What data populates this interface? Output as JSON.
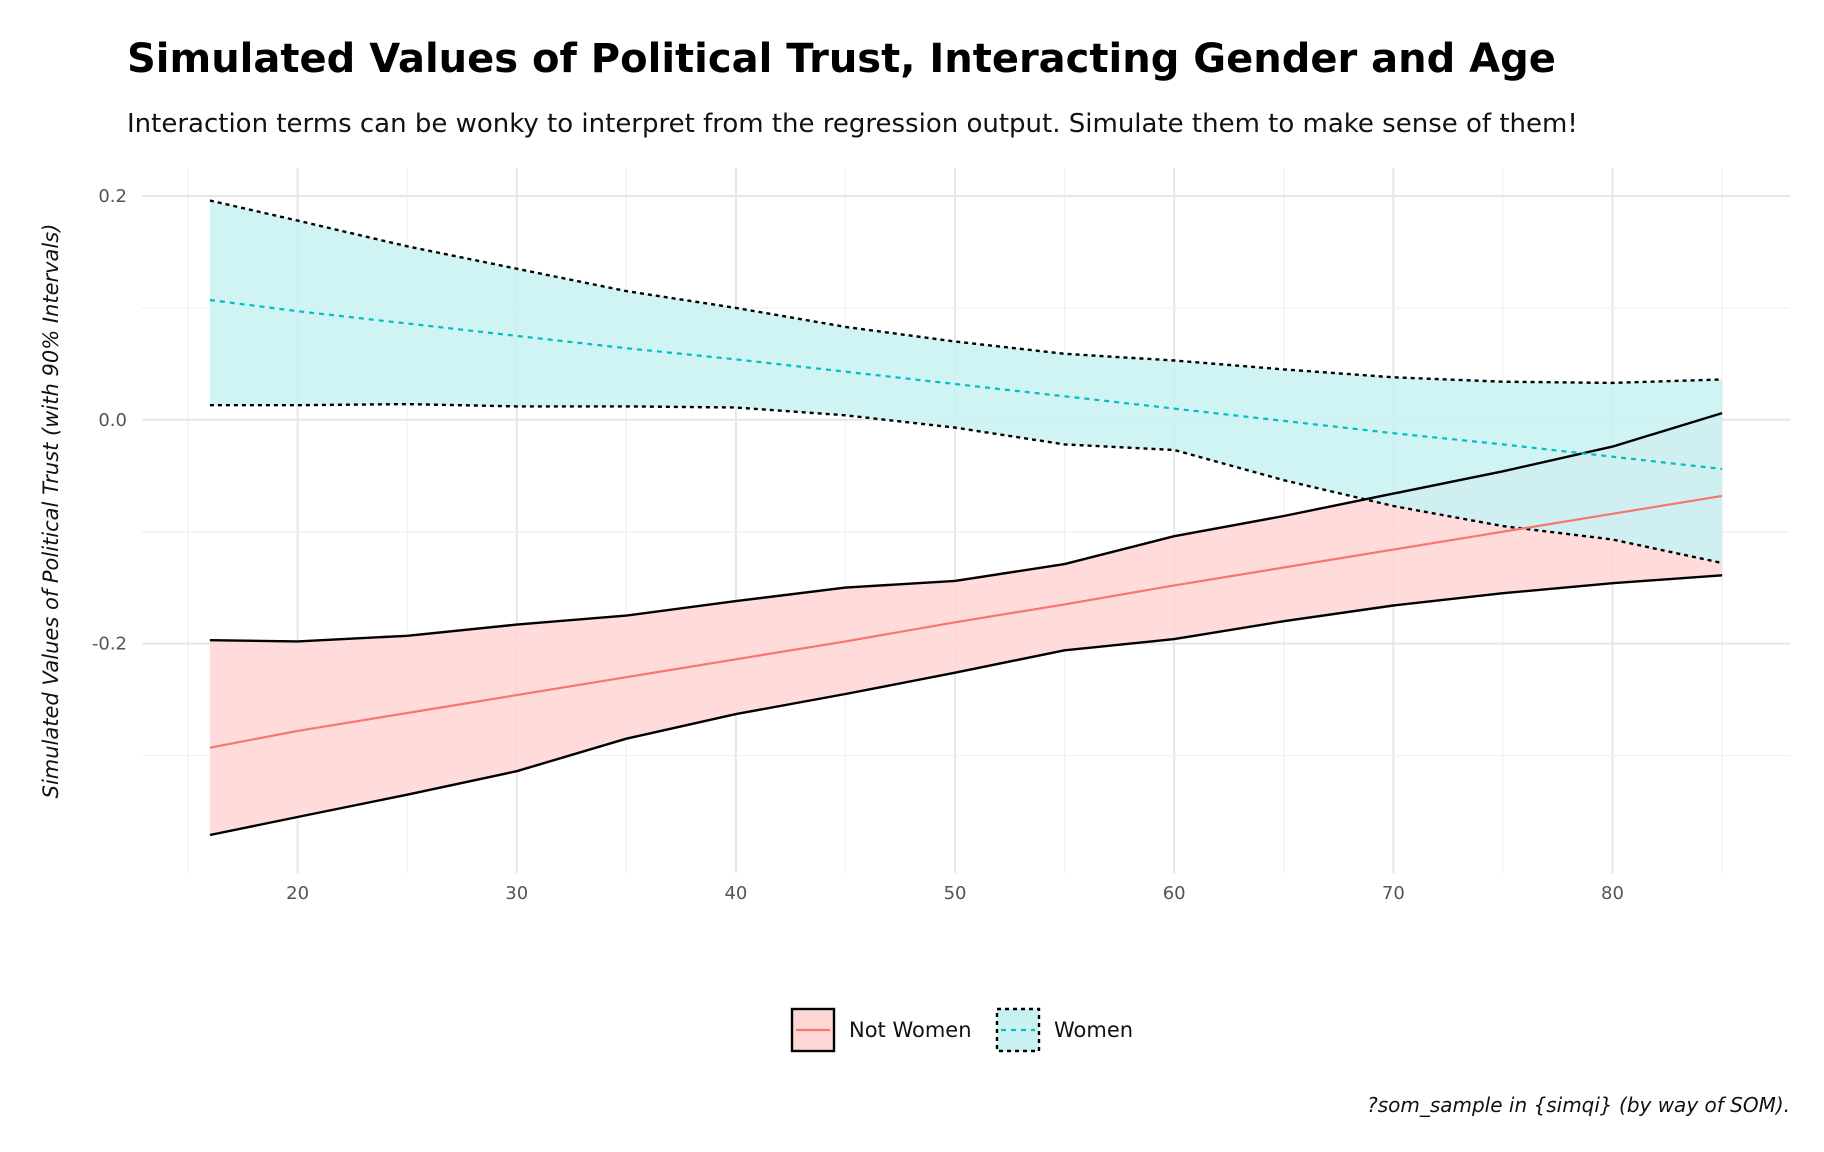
{
  "chart_data": {
    "type": "area",
    "title": "Simulated Values of Political Trust, Interacting Gender and Age",
    "subtitle": "Interaction terms can be wonky to interpret from the regression output. Simulate them to make sense of them!",
    "ylabel": "Simulated Values of Political Trust (with 90% Intervals)",
    "xlabel": "",
    "caption": "?som_sample in {simqi} (by way of SOM).",
    "xlim": [
      12.9,
      88.1
    ],
    "ylim": [
      -0.405,
      0.225
    ],
    "x_ticks": [
      20,
      30,
      40,
      50,
      60,
      70,
      80
    ],
    "y_ticks": [
      0.2,
      0.0,
      -0.2
    ],
    "y_tick_labels": [
      "0.2",
      "0.0",
      "-0.2"
    ],
    "grid": true,
    "legend_position": "bottom",
    "series": [
      {
        "name": "Not Women",
        "color": "#F8766D",
        "fill": "#FFD6D6",
        "line_style": "solid",
        "x": [
          16,
          20,
          25,
          30,
          35,
          40,
          45,
          50,
          55,
          60,
          65,
          70,
          75,
          80,
          85
        ],
        "mean": [
          -0.293,
          -0.278,
          -0.262,
          -0.246,
          -0.23,
          -0.214,
          -0.198,
          -0.181,
          -0.165,
          -0.148,
          -0.132,
          -0.116,
          -0.1,
          -0.084,
          -0.068
        ],
        "lower": [
          -0.371,
          -0.355,
          -0.335,
          -0.314,
          -0.285,
          -0.263,
          -0.245,
          -0.226,
          -0.206,
          -0.196,
          -0.18,
          -0.166,
          -0.155,
          -0.146,
          -0.139
        ],
        "upper": [
          -0.197,
          -0.198,
          -0.193,
          -0.183,
          -0.175,
          -0.162,
          -0.15,
          -0.144,
          -0.129,
          -0.104,
          -0.086,
          -0.066,
          -0.046,
          -0.024,
          0.006
        ]
      },
      {
        "name": "Women",
        "color": "#00BFC4",
        "fill": "#C9F1F2",
        "line_style": "dashed",
        "x": [
          16,
          20,
          25,
          30,
          35,
          40,
          45,
          50,
          55,
          60,
          65,
          70,
          75,
          80,
          85
        ],
        "mean": [
          0.107,
          0.097,
          0.086,
          0.075,
          0.064,
          0.054,
          0.043,
          0.032,
          0.021,
          0.01,
          -0.001,
          -0.012,
          -0.022,
          -0.033,
          -0.044
        ],
        "lower": [
          0.013,
          0.013,
          0.014,
          0.012,
          0.012,
          0.011,
          0.004,
          -0.007,
          -0.022,
          -0.027,
          -0.054,
          -0.077,
          -0.095,
          -0.107,
          -0.128
        ],
        "upper": [
          0.196,
          0.178,
          0.155,
          0.135,
          0.115,
          0.1,
          0.083,
          0.07,
          0.059,
          0.053,
          0.045,
          0.038,
          0.034,
          0.033,
          0.036
        ]
      }
    ]
  }
}
